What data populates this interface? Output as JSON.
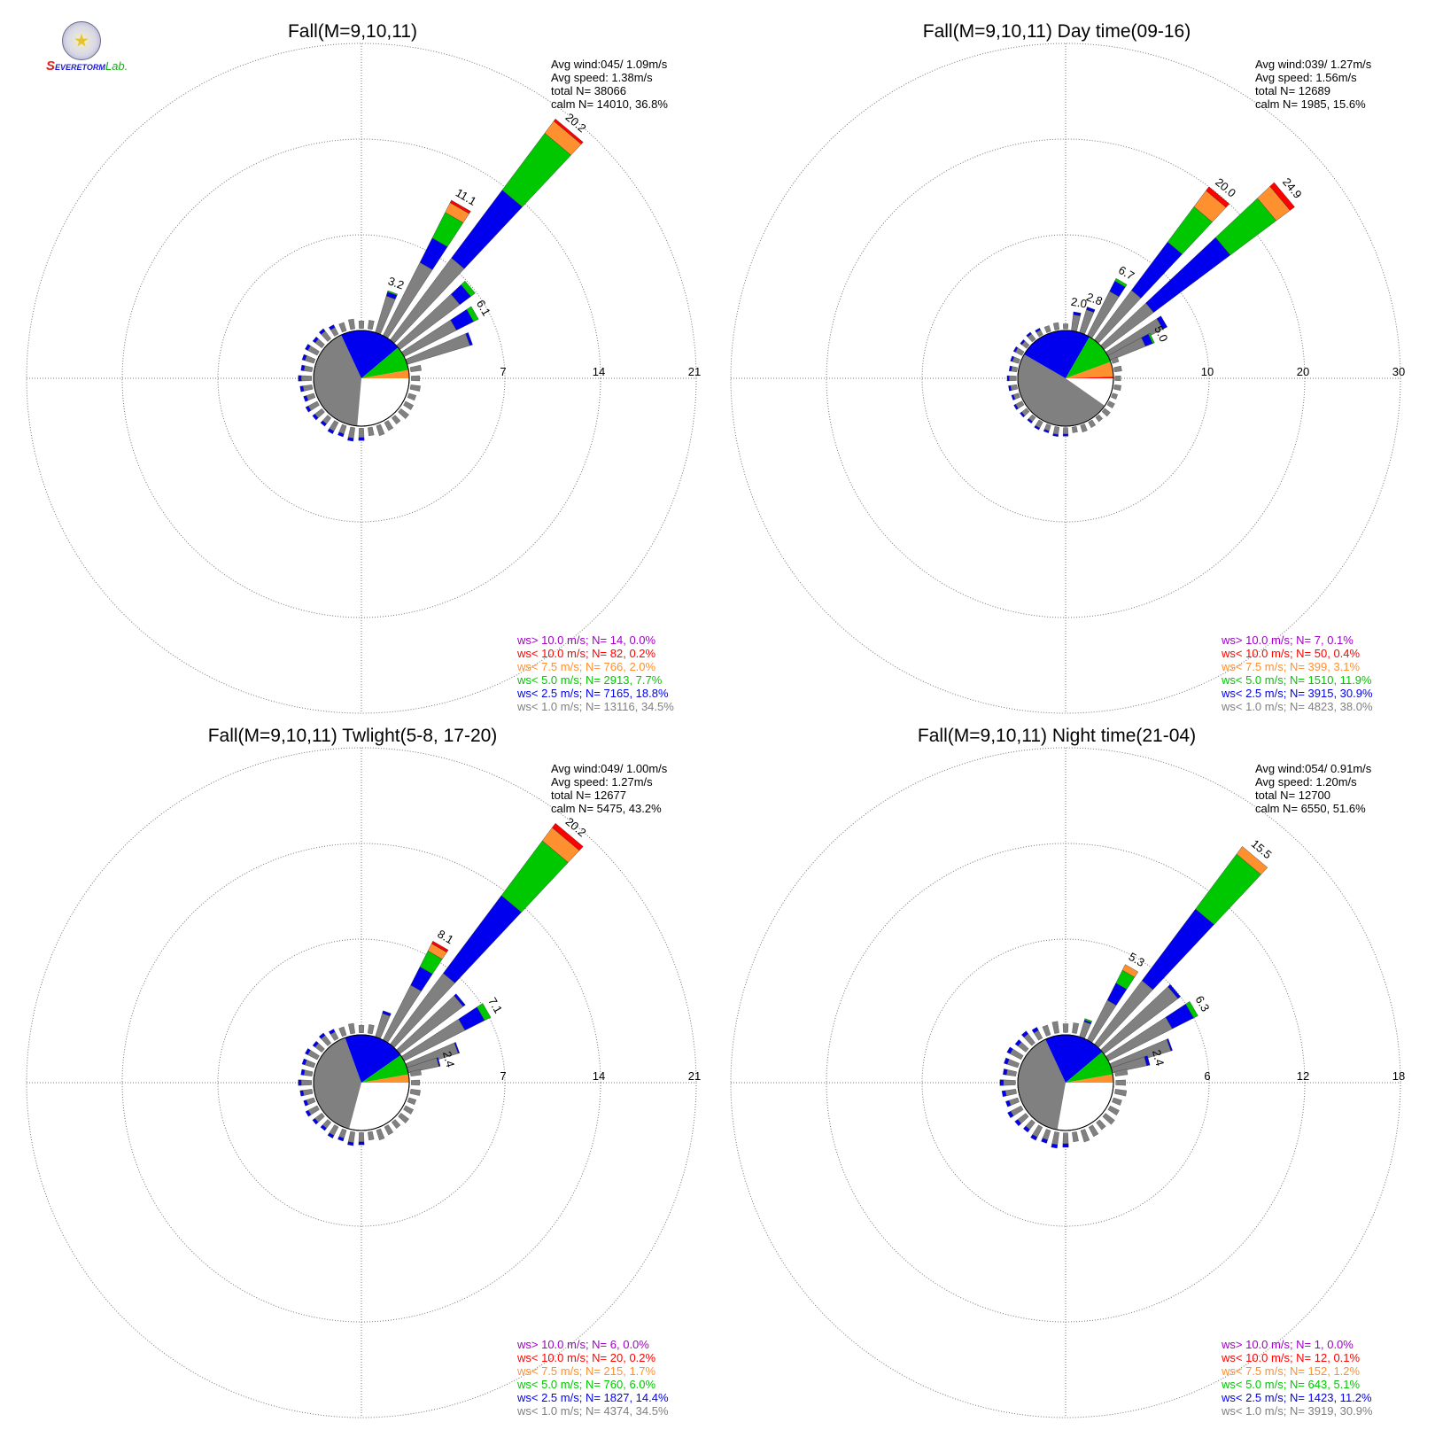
{
  "logo": {
    "text_part1": "S",
    "text_part2": "EVERE",
    "text_part3": "TORM",
    "text_part4": "Lab."
  },
  "colors": {
    "calm": "#808080",
    "lt1_0": "#808080",
    "lt2_5": "#0000ee",
    "lt5_0": "#00c800",
    "lt7_5": "#ff9030",
    "lt10_0": "#ff0000",
    "gt10_0": "#a000c8"
  },
  "chart_data": [
    {
      "type": "windrose",
      "title": "Fall(M=9,10,11)",
      "rings": [
        7,
        14,
        21
      ],
      "stats": [
        "Avg wind:045/ 1.09m/s",
        "Avg speed: 1.38m/s",
        "total N=      38066",
        "calm N=  14010,  36.8%"
      ],
      "calm_pie": [
        [
          "calm",
          0,
          95
        ],
        [
          "lt1_0",
          95,
          245
        ],
        [
          "lt2_5",
          245,
          320
        ],
        [
          "lt5_0",
          320,
          350
        ],
        [
          "lt7_5",
          350,
          360
        ]
      ],
      "petals": [
        {
          "dir": 20,
          "total": 3.2,
          "segments": {
            "lt1_0": 2.8,
            "lt2_5": 0.3,
            "lt5_0": 0.1
          }
        },
        {
          "dir": 30,
          "total": 11.1,
          "segments": {
            "lt1_0": 6.0,
            "lt2_5": 2.0,
            "lt5_0": 2.1,
            "lt7_5": 0.8,
            "lt10_0": 0.2
          }
        },
        {
          "dir": 40,
          "total": 20.2,
          "segments": {
            "lt1_0": 7.5,
            "lt2_5": 6.2,
            "lt5_0": 5.2,
            "lt7_5": 1.1,
            "lt10_0": 0.2
          }
        },
        {
          "dir": 50,
          "total": 6.9,
          "segments": {
            "lt1_0": 5.5,
            "lt2_5": 1.0,
            "lt5_0": 0.4
          }
        },
        {
          "dir": 60,
          "total": 6.1,
          "segments": {
            "lt1_0": 4.3,
            "lt2_5": 1.4,
            "lt5_0": 0.4
          }
        },
        {
          "dir": 70,
          "total": 5.0,
          "segments": {
            "lt1_0": 4.8,
            "lt2_5": 0.2
          }
        }
      ],
      "petal_labels": [
        {
          "dir": 20,
          "text": "3.2"
        },
        {
          "dir": 30,
          "text": "11.1"
        },
        {
          "dir": 40,
          "text": "20.2"
        },
        {
          "dir": 60,
          "text": "6.1"
        }
      ],
      "legend": [
        "ws> 10.0 m/s; N=     14,  0.0%",
        "ws< 10.0 m/s; N=     82,  0.2%",
        "ws<  7.5 m/s; N=   766,  2.0%",
        "ws<  5.0 m/s; N=  2913,  7.7%",
        "ws<  2.5 m/s; N=  7165, 18.8%",
        "ws<  1.0 m/s; N= 13116, 34.5%"
      ]
    },
    {
      "type": "windrose",
      "title": "Fall(M=9,10,11) Day time(09-16)",
      "rings": [
        10,
        20,
        30
      ],
      "stats": [
        "Avg wind:039/ 1.27m/s",
        "Avg speed: 1.56m/s",
        "total N=      12689",
        "calm N=   1985,  15.6%"
      ],
      "calm_pie": [
        [
          "calm",
          0,
          35
        ],
        [
          "lt1_0",
          35,
          210
        ],
        [
          "lt2_5",
          210,
          300
        ],
        [
          "lt5_0",
          300,
          340
        ],
        [
          "lt7_5",
          340,
          358
        ],
        [
          "lt10_0",
          358,
          360
        ]
      ],
      "petals": [
        {
          "dir": 10,
          "total": 2.0,
          "segments": {
            "lt1_0": 1.7,
            "lt2_5": 0.3
          }
        },
        {
          "dir": 20,
          "total": 2.8,
          "segments": {
            "lt1_0": 2.5,
            "lt2_5": 0.3
          }
        },
        {
          "dir": 30,
          "total": 6.7,
          "segments": {
            "lt1_0": 5.2,
            "lt2_5": 1.2,
            "lt5_0": 0.3
          }
        },
        {
          "dir": 40,
          "total": 20.0,
          "segments": {
            "lt1_0": 6.5,
            "lt2_5": 6.3,
            "lt5_0": 4.6,
            "lt7_5": 2.1,
            "lt10_0": 0.5
          }
        },
        {
          "dir": 50,
          "total": 24.9,
          "segments": {
            "lt1_0": 6.5,
            "lt2_5": 10.0,
            "lt5_0": 6.0,
            "lt7_5": 1.8,
            "lt10_0": 0.6
          }
        },
        {
          "dir": 60,
          "total": 6.9,
          "segments": {
            "lt1_0": 6.4,
            "lt2_5": 0.5
          }
        },
        {
          "dir": 65,
          "total": 5.0,
          "segments": {
            "lt1_0": 4.0,
            "lt2_5": 0.8,
            "lt5_0": 0.2
          }
        }
      ],
      "petal_labels": [
        {
          "dir": 10,
          "text": "2.0"
        },
        {
          "dir": 20,
          "text": "2.8"
        },
        {
          "dir": 30,
          "text": "6.7"
        },
        {
          "dir": 40,
          "text": "20.0"
        },
        {
          "dir": 50,
          "text": "24.9"
        },
        {
          "dir": 65,
          "text": "5.0"
        }
      ],
      "legend": [
        "ws> 10.0 m/s; N=      7,  0.1%",
        "ws< 10.0 m/s; N=     50,  0.4%",
        "ws<  7.5 m/s; N=   399,  3.1%",
        "ws<  5.0 m/s; N=  1510, 11.9%",
        "ws<  2.5 m/s; N=  3915, 30.9%",
        "ws<  1.0 m/s; N=  4823, 38.0%"
      ]
    },
    {
      "type": "windrose",
      "title": "Fall(M=9,10,11) Twlight(5-8, 17-20)",
      "rings": [
        7,
        14,
        21
      ],
      "stats": [
        "Avg wind:049/ 1.00m/s",
        "Avg speed: 1.27m/s",
        "total N=      12677",
        "calm N=   5475,  43.2%"
      ],
      "calm_pie": [
        [
          "calm",
          0,
          105
        ],
        [
          "lt1_0",
          105,
          250
        ],
        [
          "lt2_5",
          250,
          325
        ],
        [
          "lt5_0",
          325,
          350
        ],
        [
          "lt7_5",
          350,
          360
        ]
      ],
      "petals": [
        {
          "dir": 20,
          "total": 2.0,
          "segments": {
            "lt1_0": 1.8,
            "lt2_5": 0.2
          }
        },
        {
          "dir": 30,
          "total": 8.1,
          "segments": {
            "lt1_0": 4.5,
            "lt2_5": 1.5,
            "lt5_0": 1.3,
            "lt7_5": 0.6,
            "lt10_0": 0.2
          }
        },
        {
          "dir": 40,
          "total": 20.2,
          "segments": {
            "lt1_0": 6.5,
            "lt2_5": 7.1,
            "lt5_0": 5.0,
            "lt7_5": 1.2,
            "lt10_0": 0.4
          }
        },
        {
          "dir": 50,
          "total": 6.0,
          "segments": {
            "lt1_0": 5.8,
            "lt2_5": 0.2
          }
        },
        {
          "dir": 60,
          "total": 7.1,
          "segments": {
            "lt1_0": 5.0,
            "lt2_5": 1.6,
            "lt5_0": 0.5
          }
        },
        {
          "dir": 70,
          "total": 4.0,
          "segments": {
            "lt1_0": 3.9,
            "lt2_5": 0.1
          }
        },
        {
          "dir": 75,
          "total": 2.4,
          "segments": {
            "lt1_0": 2.3,
            "lt2_5": 0.1
          }
        }
      ],
      "petal_labels": [
        {
          "dir": 30,
          "text": "8.1"
        },
        {
          "dir": 40,
          "text": "20.2"
        },
        {
          "dir": 60,
          "text": "7.1"
        },
        {
          "dir": 75,
          "text": "2.4"
        }
      ],
      "legend": [
        "ws> 10.0 m/s; N=      6,  0.0%",
        "ws< 10.0 m/s; N=     20,  0.2%",
        "ws<  7.5 m/s; N=   215,  1.7%",
        "ws<  5.0 m/s; N=   760,  6.0%",
        "ws<  2.5 m/s; N=  1827, 14.4%",
        "ws<  1.0 m/s; N=  4374, 34.5%"
      ]
    },
    {
      "type": "windrose",
      "title": "Fall(M=9,10,11) Night time(21-04)",
      "rings": [
        6,
        12,
        18
      ],
      "stats": [
        "Avg wind:054/ 0.91m/s",
        "Avg speed: 1.20m/s",
        "total N=      12700",
        "calm N=   6550,  51.6%"
      ],
      "calm_pie": [
        [
          "calm",
          0,
          100
        ],
        [
          "lt1_0",
          100,
          245
        ],
        [
          "lt2_5",
          245,
          320
        ],
        [
          "lt5_0",
          320,
          350
        ],
        [
          "lt7_5",
          350,
          360
        ]
      ],
      "petals": [
        {
          "dir": 20,
          "total": 1.2,
          "segments": {
            "lt1_0": 1.0,
            "lt2_5": 0.1,
            "lt5_0": 0.1
          }
        },
        {
          "dir": 30,
          "total": 5.3,
          "segments": {
            "lt1_0": 2.8,
            "lt2_5": 1.2,
            "lt5_0": 0.9,
            "lt7_5": 0.4
          }
        },
        {
          "dir": 40,
          "total": 15.5,
          "segments": {
            "lt1_0": 5.0,
            "lt2_5": 5.6,
            "lt5_0": 4.3,
            "lt7_5": 0.6
          }
        },
        {
          "dir": 50,
          "total": 6.0,
          "segments": {
            "lt1_0": 5.8,
            "lt2_5": 0.2
          }
        },
        {
          "dir": 60,
          "total": 6.3,
          "segments": {
            "lt1_0": 4.5,
            "lt2_5": 1.5,
            "lt5_0": 0.3
          }
        },
        {
          "dir": 70,
          "total": 4.0,
          "segments": {
            "lt1_0": 3.9,
            "lt2_5": 0.1
          }
        },
        {
          "dir": 75,
          "total": 2.4,
          "segments": {
            "lt1_0": 2.2,
            "lt2_5": 0.2
          }
        }
      ],
      "petal_labels": [
        {
          "dir": 30,
          "text": "5.3"
        },
        {
          "dir": 40,
          "text": "15.5"
        },
        {
          "dir": 60,
          "text": "6.3"
        },
        {
          "dir": 75,
          "text": "2.4"
        }
      ],
      "legend": [
        "ws> 10.0 m/s; N=      1,  0.0%",
        "ws< 10.0 m/s; N=     12,  0.1%",
        "ws<  7.5 m/s; N=   152,  1.2%",
        "ws<  5.0 m/s; N=   643,  5.1%",
        "ws<  2.5 m/s; N=  1423, 11.2%",
        "ws<  1.0 m/s; N=  3919, 30.9%"
      ]
    }
  ]
}
